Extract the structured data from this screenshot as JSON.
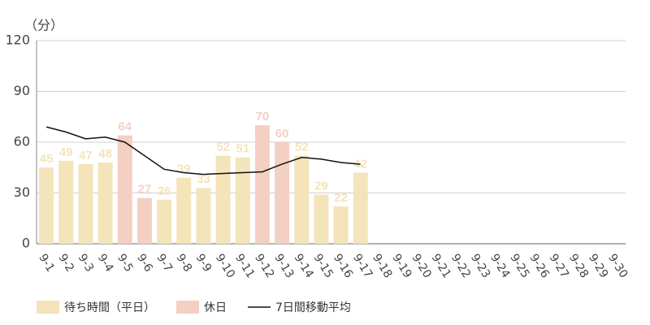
{
  "chart_data": {
    "type": "bar",
    "y_unit": "（分）",
    "categories": [
      "9-1",
      "9-2",
      "9-3",
      "9-4",
      "9-5",
      "9-6",
      "9-7",
      "9-8",
      "9-9",
      "9-10",
      "9-11",
      "9-12",
      "9-13",
      "9-14",
      "9-15",
      "9-16",
      "9-17",
      "9-18",
      "9-19",
      "9-20",
      "9-21",
      "9-22",
      "9-23",
      "9-24",
      "9-25",
      "9-26",
      "9-27",
      "9-28",
      "9-29",
      "9-30"
    ],
    "series": [
      {
        "name": "待ち時間（平日）",
        "type": "bar",
        "color": "#f3e4b9",
        "values": [
          45,
          49,
          47,
          48,
          null,
          null,
          26,
          39,
          33,
          52,
          51,
          null,
          null,
          52,
          29,
          22,
          42,
          null,
          null,
          null,
          null,
          null,
          null,
          null,
          null,
          null,
          null,
          null,
          null,
          null
        ]
      },
      {
        "name": "休日",
        "type": "bar",
        "color": "#f4d0c2",
        "label_color": "#d4785a",
        "values": [
          null,
          null,
          null,
          null,
          64,
          27,
          null,
          null,
          null,
          null,
          null,
          70,
          60,
          null,
          null,
          null,
          null,
          null,
          null,
          null,
          null,
          null,
          null,
          null,
          null,
          null,
          null,
          null,
          null,
          null
        ]
      },
      {
        "name": "7日間移動平均",
        "type": "line",
        "color": "#111111",
        "values": [
          69,
          66,
          62,
          63,
          60,
          52,
          44,
          42,
          41,
          41.5,
          42,
          42.5,
          47,
          51,
          50,
          48,
          47,
          null,
          null,
          null,
          null,
          null,
          null,
          null,
          null,
          null,
          null,
          null,
          null,
          null
        ]
      }
    ],
    "ylim": [
      0,
      120
    ],
    "yticks": [
      0,
      30,
      60,
      90,
      120
    ],
    "grid": true
  }
}
